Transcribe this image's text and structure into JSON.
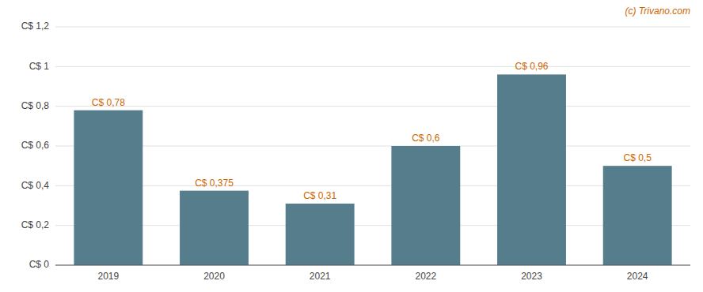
{
  "chart_data": {
    "type": "bar",
    "categories": [
      "2019",
      "2020",
      "2021",
      "2022",
      "2023",
      "2024"
    ],
    "values": [
      0.78,
      0.375,
      0.31,
      0.6,
      0.96,
      0.5
    ],
    "value_labels": [
      "C$ 0,78",
      "C$ 0,375",
      "C$ 0,31",
      "C$ 0,6",
      "C$ 0,96",
      "C$ 0,5"
    ],
    "data_labels": true,
    "color": "#567d8c",
    "ylim": [
      0,
      1.2
    ],
    "yticks": [
      {
        "value": 0,
        "label": "C$ 0"
      },
      {
        "value": 0.2,
        "label": "C$ 0,2"
      },
      {
        "value": 0.4,
        "label": "C$ 0,4"
      },
      {
        "value": 0.6,
        "label": "C$ 0,6"
      },
      {
        "value": 0.8,
        "label": "C$ 0,8"
      },
      {
        "value": 1.0,
        "label": "C$ 1"
      },
      {
        "value": 1.2,
        "label": "C$ 1,2"
      }
    ],
    "grid": true,
    "annotations": [
      "(c) Trivano.com"
    ]
  }
}
